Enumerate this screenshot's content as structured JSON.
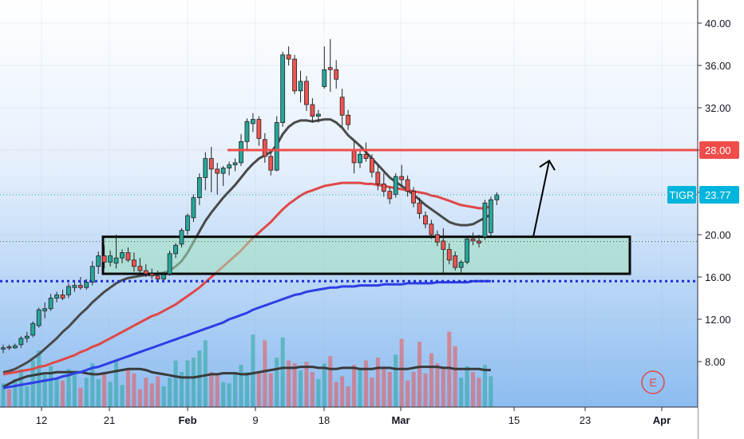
{
  "chart_data": {
    "type": "candlestick",
    "ticker": "TIGR",
    "last_price": 23.77,
    "last_price_label": "23.77",
    "resistance_level": 28.0,
    "resistance_label": "28.00",
    "support_level": 15.6,
    "ylim": [
      4.5,
      42
    ],
    "y_ticks": [
      "40.00",
      "36.00",
      "32.00",
      "28.00",
      "24.00",
      "20.00",
      "16.00",
      "12.00",
      "8.00"
    ],
    "x_labels": [
      {
        "label": "12",
        "bold": false
      },
      {
        "label": "21",
        "bold": false
      },
      {
        "label": "Feb",
        "bold": true
      },
      {
        "label": "9",
        "bold": false
      },
      {
        "label": "18",
        "bold": false
      },
      {
        "label": "Mar",
        "bold": true
      },
      {
        "label": "15",
        "bold": false
      },
      {
        "label": "23",
        "bold": false
      },
      {
        "label": "Apr",
        "bold": true
      }
    ],
    "demand_zone": {
      "low": 16.3,
      "high": 19.8
    },
    "target_arrow": {
      "from": 19.8,
      "to": 27.0
    },
    "event_marker": "E",
    "candles": [
      {
        "o": 9.3,
        "h": 9.6,
        "l": 8.8,
        "c": 9.3
      },
      {
        "o": 9.4,
        "h": 9.6,
        "l": 9.1,
        "c": 9.3
      },
      {
        "o": 9.3,
        "h": 9.7,
        "l": 9.2,
        "c": 9.5
      },
      {
        "o": 9.6,
        "h": 10.4,
        "l": 9.3,
        "c": 10.2
      },
      {
        "o": 10.2,
        "h": 10.8,
        "l": 9.8,
        "c": 10.4
      },
      {
        "o": 10.5,
        "h": 11.8,
        "l": 10.3,
        "c": 11.6
      },
      {
        "o": 11.4,
        "h": 13.1,
        "l": 11.2,
        "c": 12.9
      },
      {
        "o": 12.8,
        "h": 13.6,
        "l": 12.1,
        "c": 13.0
      },
      {
        "o": 13.0,
        "h": 14.4,
        "l": 12.8,
        "c": 14.0
      },
      {
        "o": 14.0,
        "h": 14.6,
        "l": 13.6,
        "c": 14.3
      },
      {
        "o": 14.3,
        "h": 14.8,
        "l": 13.8,
        "c": 14.0
      },
      {
        "o": 14.3,
        "h": 15.4,
        "l": 14.0,
        "c": 15.1
      },
      {
        "o": 15.0,
        "h": 15.6,
        "l": 14.6,
        "c": 15.2
      },
      {
        "o": 15.2,
        "h": 16.0,
        "l": 14.8,
        "c": 15.0
      },
      {
        "o": 15.0,
        "h": 15.8,
        "l": 14.8,
        "c": 15.5
      },
      {
        "o": 15.5,
        "h": 17.5,
        "l": 15.2,
        "c": 17.0
      },
      {
        "o": 17.0,
        "h": 18.4,
        "l": 16.3,
        "c": 18.0
      },
      {
        "o": 18.0,
        "h": 19.0,
        "l": 16.8,
        "c": 17.4
      },
      {
        "o": 17.4,
        "h": 18.5,
        "l": 17.0,
        "c": 18.0
      },
      {
        "o": 17.3,
        "h": 20.0,
        "l": 16.8,
        "c": 17.8
      },
      {
        "o": 17.8,
        "h": 18.6,
        "l": 17.3,
        "c": 18.3
      },
      {
        "o": 18.3,
        "h": 18.8,
        "l": 17.4,
        "c": 17.6
      },
      {
        "o": 17.6,
        "h": 18.3,
        "l": 16.5,
        "c": 17.0
      },
      {
        "o": 17.0,
        "h": 17.8,
        "l": 16.3,
        "c": 16.6
      },
      {
        "o": 16.6,
        "h": 17.2,
        "l": 16.0,
        "c": 16.3
      },
      {
        "o": 16.3,
        "h": 16.8,
        "l": 15.8,
        "c": 16.1
      },
      {
        "o": 16.1,
        "h": 16.6,
        "l": 15.6,
        "c": 15.8
      },
      {
        "o": 15.8,
        "h": 16.5,
        "l": 15.5,
        "c": 16.2
      },
      {
        "o": 16.3,
        "h": 18.5,
        "l": 16.1,
        "c": 18.2
      },
      {
        "o": 18.2,
        "h": 19.2,
        "l": 17.8,
        "c": 19.0
      },
      {
        "o": 19.1,
        "h": 20.6,
        "l": 18.8,
        "c": 20.4
      },
      {
        "o": 20.4,
        "h": 22.0,
        "l": 20.0,
        "c": 21.8
      },
      {
        "o": 21.6,
        "h": 23.8,
        "l": 21.2,
        "c": 23.5
      },
      {
        "o": 23.5,
        "h": 25.8,
        "l": 22.8,
        "c": 25.4
      },
      {
        "o": 25.4,
        "h": 27.8,
        "l": 24.2,
        "c": 27.2
      },
      {
        "o": 27.2,
        "h": 28.3,
        "l": 24.0,
        "c": 26.2
      },
      {
        "o": 26.2,
        "h": 26.8,
        "l": 23.8,
        "c": 25.8
      },
      {
        "o": 25.8,
        "h": 26.5,
        "l": 24.6,
        "c": 26.3
      },
      {
        "o": 26.3,
        "h": 26.9,
        "l": 25.6,
        "c": 26.6
      },
      {
        "o": 26.6,
        "h": 27.2,
        "l": 26.0,
        "c": 26.8
      },
      {
        "o": 26.8,
        "h": 29.5,
        "l": 26.5,
        "c": 28.8
      },
      {
        "o": 28.8,
        "h": 31.0,
        "l": 28.0,
        "c": 30.7
      },
      {
        "o": 30.5,
        "h": 31.5,
        "l": 29.7,
        "c": 30.9
      },
      {
        "o": 30.9,
        "h": 31.2,
        "l": 28.4,
        "c": 29.1
      },
      {
        "o": 29.0,
        "h": 29.6,
        "l": 26.8,
        "c": 27.4
      },
      {
        "o": 27.4,
        "h": 27.8,
        "l": 25.6,
        "c": 26.1
      },
      {
        "o": 26.1,
        "h": 31.2,
        "l": 26.0,
        "c": 30.6
      },
      {
        "o": 30.6,
        "h": 37.3,
        "l": 30.2,
        "c": 37.0
      },
      {
        "o": 37.0,
        "h": 37.8,
        "l": 36.0,
        "c": 36.6
      },
      {
        "o": 36.6,
        "h": 37.0,
        "l": 33.3,
        "c": 33.6
      },
      {
        "o": 33.6,
        "h": 35.5,
        "l": 32.5,
        "c": 34.5
      },
      {
        "o": 34.5,
        "h": 35.0,
        "l": 31.7,
        "c": 32.3
      },
      {
        "o": 32.3,
        "h": 32.9,
        "l": 30.6,
        "c": 31.2
      },
      {
        "o": 31.2,
        "h": 31.8,
        "l": 30.6,
        "c": 31.4
      },
      {
        "o": 34.0,
        "h": 37.8,
        "l": 33.8,
        "c": 35.6
      },
      {
        "o": 35.8,
        "h": 38.5,
        "l": 33.5,
        "c": 35.6
      },
      {
        "o": 35.6,
        "h": 36.5,
        "l": 33.8,
        "c": 34.7
      },
      {
        "o": 33.0,
        "h": 33.8,
        "l": 30.2,
        "c": 31.3
      },
      {
        "o": 31.3,
        "h": 31.8,
        "l": 29.9,
        "c": 30.4
      },
      {
        "o": 28.0,
        "h": 28.8,
        "l": 25.8,
        "c": 26.8
      },
      {
        "o": 26.8,
        "h": 27.9,
        "l": 26.3,
        "c": 27.6
      },
      {
        "o": 27.6,
        "h": 28.7,
        "l": 26.9,
        "c": 27.2
      },
      {
        "o": 27.2,
        "h": 27.6,
        "l": 25.4,
        "c": 25.9
      },
      {
        "o": 25.9,
        "h": 26.5,
        "l": 24.2,
        "c": 24.8
      },
      {
        "o": 24.8,
        "h": 25.8,
        "l": 23.6,
        "c": 24.1
      },
      {
        "o": 24.1,
        "h": 24.5,
        "l": 22.9,
        "c": 23.4
      },
      {
        "o": 23.8,
        "h": 25.8,
        "l": 23.5,
        "c": 25.5
      },
      {
        "o": 25.5,
        "h": 26.6,
        "l": 24.6,
        "c": 25.2
      },
      {
        "o": 25.2,
        "h": 25.6,
        "l": 23.6,
        "c": 24.1
      },
      {
        "o": 24.1,
        "h": 24.5,
        "l": 22.6,
        "c": 23.0
      },
      {
        "o": 23.0,
        "h": 23.5,
        "l": 21.5,
        "c": 22.0
      },
      {
        "o": 21.8,
        "h": 22.2,
        "l": 20.6,
        "c": 21.0
      },
      {
        "o": 21.0,
        "h": 21.4,
        "l": 19.6,
        "c": 20.0
      },
      {
        "o": 20.0,
        "h": 20.4,
        "l": 18.9,
        "c": 19.3
      },
      {
        "o": 19.4,
        "h": 20.6,
        "l": 16.3,
        "c": 18.6
      },
      {
        "o": 18.6,
        "h": 19.2,
        "l": 17.2,
        "c": 17.6
      },
      {
        "o": 18.0,
        "h": 18.4,
        "l": 16.6,
        "c": 16.9
      },
      {
        "o": 16.9,
        "h": 17.6,
        "l": 16.3,
        "c": 17.4
      },
      {
        "o": 17.4,
        "h": 19.8,
        "l": 17.2,
        "c": 19.6
      },
      {
        "o": 19.6,
        "h": 20.2,
        "l": 19.0,
        "c": 19.4
      },
      {
        "o": 19.4,
        "h": 20.0,
        "l": 18.8,
        "c": 19.2
      },
      {
        "o": 19.8,
        "h": 23.3,
        "l": 19.5,
        "c": 23.0
      },
      {
        "o": 20.2,
        "h": 23.6,
        "l": 19.9,
        "c": 23.3
      },
      {
        "o": 23.3,
        "h": 24.0,
        "l": 22.8,
        "c": 23.77
      }
    ],
    "series": [
      {
        "values": [
          7.0,
          7.1,
          7.3,
          7.6,
          7.9,
          8.3,
          8.7,
          9.2,
          9.7,
          10.2,
          10.8,
          11.3,
          11.9,
          12.5,
          13.0,
          13.6,
          14.1,
          14.6,
          15.0,
          15.4,
          15.7,
          15.9,
          16.0,
          16.1,
          16.2,
          16.2,
          16.3,
          16.4,
          16.6,
          17.0,
          17.5,
          18.3,
          19.3,
          20.3,
          21.3,
          22.1,
          22.8,
          23.5,
          24.1,
          24.7,
          25.4,
          26.1,
          26.7,
          27.2,
          27.5,
          27.8,
          28.5,
          29.5,
          30.2,
          30.6,
          30.8,
          30.8,
          30.7,
          30.8,
          30.9,
          30.9,
          30.6,
          30.1,
          29.4,
          28.9,
          28.4,
          27.8,
          27.2,
          26.6,
          26.0,
          25.4,
          25.0,
          24.6,
          24.2,
          23.8,
          23.3,
          22.8,
          22.4,
          22.0,
          21.6,
          21.2,
          21.0,
          20.9,
          20.9,
          21.0,
          21.3,
          21.6,
          21.9
        ]
      },
      {
        "values": [
          6.8,
          6.9,
          7.0,
          7.1,
          7.2,
          7.3,
          7.5,
          7.6,
          7.8,
          8.0,
          8.2,
          8.4,
          8.6,
          8.9,
          9.1,
          9.4,
          9.6,
          9.9,
          10.2,
          10.5,
          10.8,
          11.1,
          11.4,
          11.7,
          12.0,
          12.3,
          12.5,
          12.8,
          13.1,
          13.4,
          13.8,
          14.2,
          14.6,
          15.0,
          15.5,
          16.0,
          16.5,
          17.0,
          17.5,
          18.0,
          18.5,
          19.1,
          19.7,
          20.2,
          20.7,
          21.2,
          21.8,
          22.4,
          22.9,
          23.3,
          23.7,
          24.0,
          24.2,
          24.4,
          24.6,
          24.7,
          24.8,
          24.9,
          24.9,
          24.9,
          24.9,
          24.8,
          24.8,
          24.7,
          24.6,
          24.5,
          24.4,
          24.3,
          24.2,
          24.1,
          24.0,
          23.9,
          23.7,
          23.6,
          23.4,
          23.2,
          23.0,
          22.8,
          22.7,
          22.6,
          22.5,
          22.5,
          22.7
        ]
      },
      {
        "values": [
          5.5,
          5.6,
          5.7,
          5.8,
          5.9,
          6.0,
          6.1,
          6.2,
          6.3,
          6.4,
          6.6,
          6.7,
          6.9,
          7.0,
          7.2,
          7.4,
          7.5,
          7.7,
          7.9,
          8.1,
          8.3,
          8.5,
          8.7,
          8.9,
          9.1,
          9.3,
          9.5,
          9.7,
          9.9,
          10.1,
          10.3,
          10.5,
          10.7,
          10.9,
          11.1,
          11.3,
          11.5,
          11.7,
          12.0,
          12.2,
          12.4,
          12.6,
          12.9,
          13.1,
          13.3,
          13.5,
          13.7,
          13.9,
          14.1,
          14.3,
          14.4,
          14.6,
          14.7,
          14.8,
          14.9,
          15.0,
          15.0,
          15.1,
          15.1,
          15.1,
          15.2,
          15.2,
          15.2,
          15.2,
          15.3,
          15.3,
          15.3,
          15.3,
          15.4,
          15.4,
          15.4,
          15.4,
          15.4,
          15.5,
          15.5,
          15.5,
          15.5,
          15.5,
          15.5,
          15.6,
          15.6,
          15.6,
          15.6
        ]
      }
    ],
    "volume_ma": [
      5.6,
      5.9,
      6.2,
      6.4,
      6.6,
      6.7,
      6.8,
      6.9,
      6.9,
      7.0,
      7.0,
      7.0,
      7.0,
      7.0,
      6.9,
      6.8,
      6.8,
      6.9,
      7.0,
      7.1,
      7.2,
      7.3,
      7.3,
      7.3,
      7.2,
      7.0,
      6.9,
      6.8,
      6.7,
      6.6,
      6.5,
      6.5,
      6.5,
      6.6,
      6.7,
      6.8,
      6.8,
      6.9,
      6.9,
      6.9,
      6.8,
      6.8,
      6.9,
      7.0,
      7.1,
      7.2,
      7.3,
      7.4,
      7.4,
      7.4,
      7.5,
      7.5,
      7.5,
      7.4,
      7.4,
      7.3,
      7.3,
      7.4,
      7.4,
      7.4,
      7.3,
      7.3,
      7.3,
      7.4,
      7.4,
      7.4,
      7.3,
      7.3,
      7.3,
      7.4,
      7.5,
      7.5,
      7.5,
      7.5,
      7.4,
      7.4,
      7.3,
      7.3,
      7.3,
      7.3,
      7.3,
      7.2,
      7.2
    ],
    "volumes": [
      1.2,
      0.8,
      1.5,
      2.2,
      1.0,
      2.8,
      3.5,
      1.8,
      2.4,
      1.6,
      1.4,
      2.2,
      1.9,
      0.9,
      1.6,
      2.6,
      1.5,
      2.0,
      1.3,
      2.8,
      1.1,
      2.2,
      1.9,
      0.8,
      1.6,
      1.2,
      1.7,
      1.0,
      1.6,
      2.8,
      2.0,
      2.8,
      3.0,
      3.5,
      4.2,
      2.0,
      1.8,
      1.3,
      1.2,
      2.0,
      2.5,
      2.0,
      4.6,
      2.0,
      4.2,
      1.9,
      3.0,
      4.4,
      2.8,
      2.6,
      2.1,
      2.7,
      2.0,
      1.5,
      2.6,
      3.1,
      1.3,
      1.7,
      1.0,
      2.5,
      2.2,
      2.8,
      1.6,
      3.0,
      2.2,
      2.0,
      3.2,
      4.3,
      1.4,
      2.0,
      4.1,
      1.9,
      3.3,
      2.6,
      2.2,
      4.8,
      3.8,
      1.6,
      2.4,
      2.0,
      1.6,
      2.5,
      1.7
    ]
  },
  "colors": {
    "up": "#26a69a",
    "down": "#ef5350",
    "ema_fast": "#4a4a4a",
    "ema_slow": "#e04848",
    "ema_long": "#2e3ee6",
    "volume_ma": "#3a3a3a",
    "resistance": "#ef4d4a",
    "support": "#1f2fd6",
    "bg_top": "#ffffff",
    "bg_bottom": "#8cbcf0",
    "zone_fill": "rgba(160, 225, 190, 0.55)",
    "ticker_badge": "#00b4dc"
  }
}
